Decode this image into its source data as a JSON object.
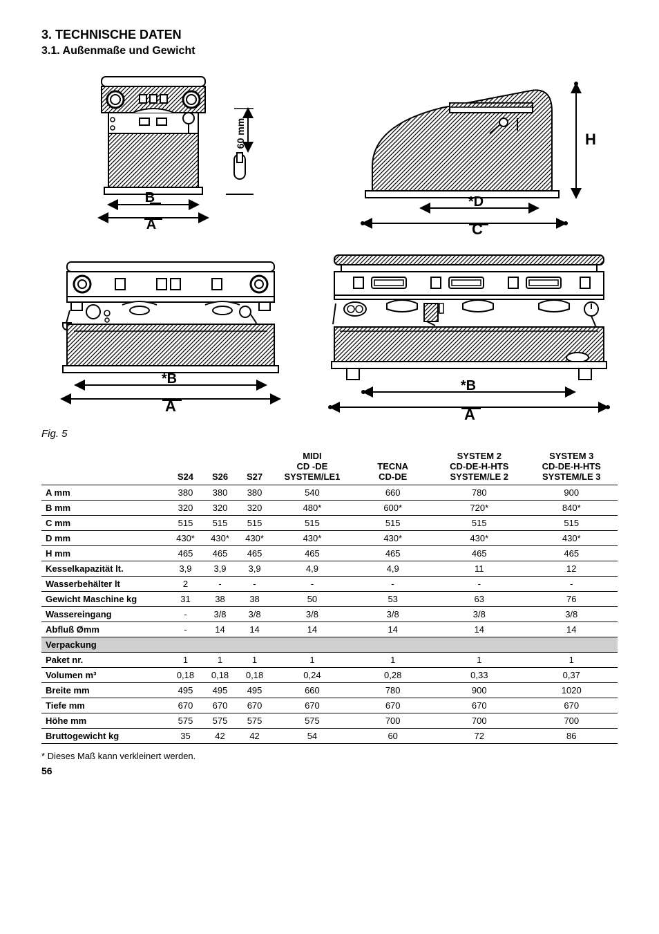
{
  "headings": {
    "section": "3. TECHNISCHE DATEN",
    "subsection": "3.1. Außenmaße und Gewicht",
    "fig_caption": "Fig. 5",
    "footnote": "* Dieses Maß kann verkleinert werden.",
    "page_num": "56"
  },
  "figures": {
    "fig1": {
      "labels": {
        "B": "B",
        "A": "A",
        "sixty": "60 mm"
      }
    },
    "fig2": {
      "labels": {
        "H": "H",
        "D": "*D",
        "C": "C"
      }
    },
    "fig3": {
      "labels": {
        "B": "*B",
        "A": "A"
      }
    },
    "fig4": {
      "labels": {
        "B": "*B",
        "A": "A"
      }
    }
  },
  "table": {
    "columns": [
      {
        "key": "label",
        "header": ""
      },
      {
        "key": "s24",
        "header": "S24"
      },
      {
        "key": "s26",
        "header": "S26"
      },
      {
        "key": "s27",
        "header": "S27"
      },
      {
        "key": "midi",
        "header": "MIDI\nCD -DE\nSYSTEM/LE1"
      },
      {
        "key": "tecna",
        "header": "TECNA\nCD-DE"
      },
      {
        "key": "sys2",
        "header": "SYSTEM 2\nCD-DE-H-HTS\nSYSTEM/LE 2"
      },
      {
        "key": "sys3",
        "header": "SYSTEM 3\nCD-DE-H-HTS\nSYSTEM/LE 3"
      }
    ],
    "col_widths": [
      "22%",
      "6%",
      "6%",
      "6%",
      "14%",
      "14%",
      "16%",
      "16%"
    ],
    "rows": [
      {
        "label": "A mm",
        "s24": "380",
        "s26": "380",
        "s27": "380",
        "midi": "540",
        "tecna": "660",
        "sys2": "780",
        "sys3": "900"
      },
      {
        "label": "B mm",
        "s24": "320",
        "s26": "320",
        "s27": "320",
        "midi": "480*",
        "tecna": "600*",
        "sys2": "720*",
        "sys3": "840*"
      },
      {
        "label": "C mm",
        "s24": "515",
        "s26": "515",
        "s27": "515",
        "midi": "515",
        "tecna": "515",
        "sys2": "515",
        "sys3": "515"
      },
      {
        "label": "D mm",
        "s24": "430*",
        "s26": "430*",
        "s27": "430*",
        "midi": "430*",
        "tecna": "430*",
        "sys2": "430*",
        "sys3": "430*"
      },
      {
        "label": "H mm",
        "s24": "465",
        "s26": "465",
        "s27": "465",
        "midi": "465",
        "tecna": "465",
        "sys2": "465",
        "sys3": "465"
      },
      {
        "label": "Kesselkapazität lt.",
        "s24": "3,9",
        "s26": "3,9",
        "s27": "3,9",
        "midi": "4,9",
        "tecna": "4,9",
        "sys2": "11",
        "sys3": "12"
      },
      {
        "label": "Wasserbehälter lt",
        "s24": "2",
        "s26": "-",
        "s27": "-",
        "midi": "-",
        "tecna": "-",
        "sys2": "-",
        "sys3": "-"
      },
      {
        "label": "Gewicht Maschine kg",
        "s24": "31",
        "s26": "38",
        "s27": "38",
        "midi": "50",
        "tecna": "53",
        "sys2": "63",
        "sys3": "76"
      },
      {
        "label": "Wassereingang",
        "s24": "-",
        "s26": "3/8",
        "s27": "3/8",
        "midi": "3/8",
        "tecna": "3/8",
        "sys2": "3/8",
        "sys3": "3/8"
      },
      {
        "label": "Abfluß Ømm",
        "s24": "-",
        "s26": "14",
        "s27": "14",
        "midi": "14",
        "tecna": "14",
        "sys2": "14",
        "sys3": "14"
      },
      {
        "section": true,
        "label": "Verpackung"
      },
      {
        "label": "Paket nr.",
        "s24": "1",
        "s26": "1",
        "s27": "1",
        "midi": "1",
        "tecna": "1",
        "sys2": "1",
        "sys3": "1"
      },
      {
        "label": "Volumen m³",
        "s24": "0,18",
        "s26": "0,18",
        "s27": "0,18",
        "midi": "0,24",
        "tecna": "0,28",
        "sys2": "0,33",
        "sys3": "0,37"
      },
      {
        "label": "Breite  mm",
        "s24": "495",
        "s26": "495",
        "s27": "495",
        "midi": "660",
        "tecna": "780",
        "sys2": "900",
        "sys3": "1020"
      },
      {
        "label": "Tiefe mm",
        "s24": "670",
        "s26": "670",
        "s27": "670",
        "midi": "670",
        "tecna": "670",
        "sys2": "670",
        "sys3": "670"
      },
      {
        "label": "Höhe mm",
        "s24": "575",
        "s26": "575",
        "s27": "575",
        "midi": "575",
        "tecna": "700",
        "sys2": "700",
        "sys3": "700"
      },
      {
        "label": "Bruttogewicht kg",
        "s24": "35",
        "s26": "42",
        "s27": "42",
        "midi": "54",
        "tecna": "60",
        "sys2": "72",
        "sys3": "86"
      }
    ]
  },
  "svg_style": {
    "stroke": "#000000",
    "thin": 2,
    "thick": 3,
    "hatch_fill": "url(#hatch)",
    "label_font": "18px Arial",
    "label_font_bold": "bold 20px Arial"
  }
}
